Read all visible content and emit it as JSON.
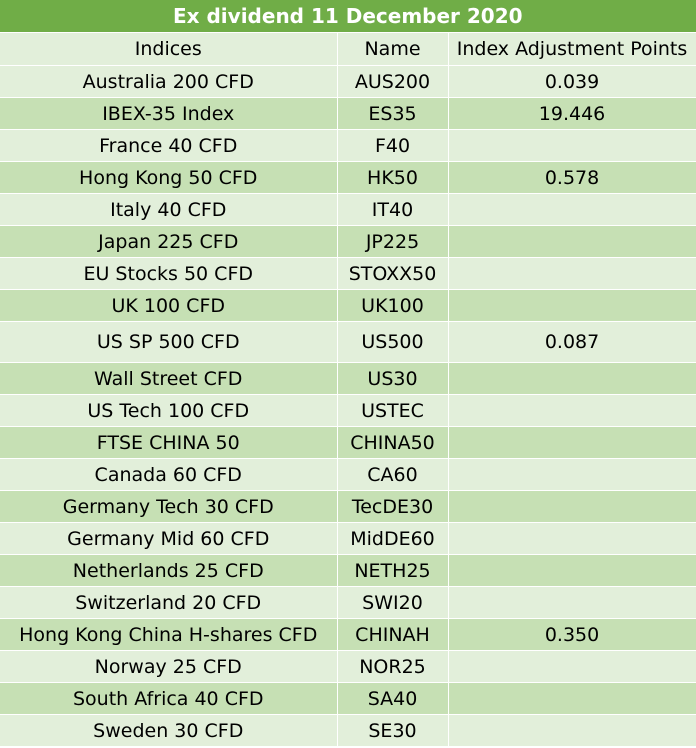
{
  "title": "Ex dividend 11 December 2020",
  "headers": [
    "Indices",
    "Name",
    "Index Adjustment Points"
  ],
  "rows": [
    {
      "index": "Australia 200 CFD",
      "name": "AUS200",
      "points": "0.039"
    },
    {
      "index": "IBEX-35 Index",
      "name": "ES35",
      "points": "19.446"
    },
    {
      "index": "France 40 CFD",
      "name": "F40",
      "points": ""
    },
    {
      "index": "Hong Kong 50 CFD",
      "name": "HK50",
      "points": "0.578"
    },
    {
      "index": "Italy 40 CFD",
      "name": "IT40",
      "points": ""
    },
    {
      "index": "Japan 225 CFD",
      "name": "JP225",
      "points": ""
    },
    {
      "index": "EU Stocks 50 CFD",
      "name": "STOXX50",
      "points": ""
    },
    {
      "index": "UK 100 CFD",
      "name": "UK100",
      "points": ""
    },
    {
      "index": "US SP 500 CFD",
      "name": "US500",
      "points": "0.087"
    },
    {
      "index": "Wall Street CFD",
      "name": "US30",
      "points": ""
    },
    {
      "index": "US Tech 100 CFD",
      "name": "USTEC",
      "points": ""
    },
    {
      "index": "FTSE CHINA 50",
      "name": "CHINA50",
      "points": ""
    },
    {
      "index": "Canada 60 CFD",
      "name": "CA60",
      "points": ""
    },
    {
      "index": "Germany Tech 30 CFD",
      "name": "TecDE30",
      "points": ""
    },
    {
      "index": "Germany Mid 60 CFD",
      "name": "MidDE60",
      "points": ""
    },
    {
      "index": "Netherlands 25 CFD",
      "name": "NETH25",
      "points": ""
    },
    {
      "index": "Switzerland 20 CFD",
      "name": "SWI20",
      "points": ""
    },
    {
      "index": "Hong Kong China H-shares CFD",
      "name": "CHINAH",
      "points": "0.350"
    },
    {
      "index": "Norway 25 CFD",
      "name": "NOR25",
      "points": ""
    },
    {
      "index": "South Africa 40 CFD",
      "name": "SA40",
      "points": ""
    },
    {
      "index": "Sweden 30 CFD",
      "name": "SE30",
      "points": ""
    }
  ],
  "colors": {
    "title_bg": "#70ad47",
    "row_light": "#e2efda",
    "row_dark": "#c6e0b4"
  }
}
